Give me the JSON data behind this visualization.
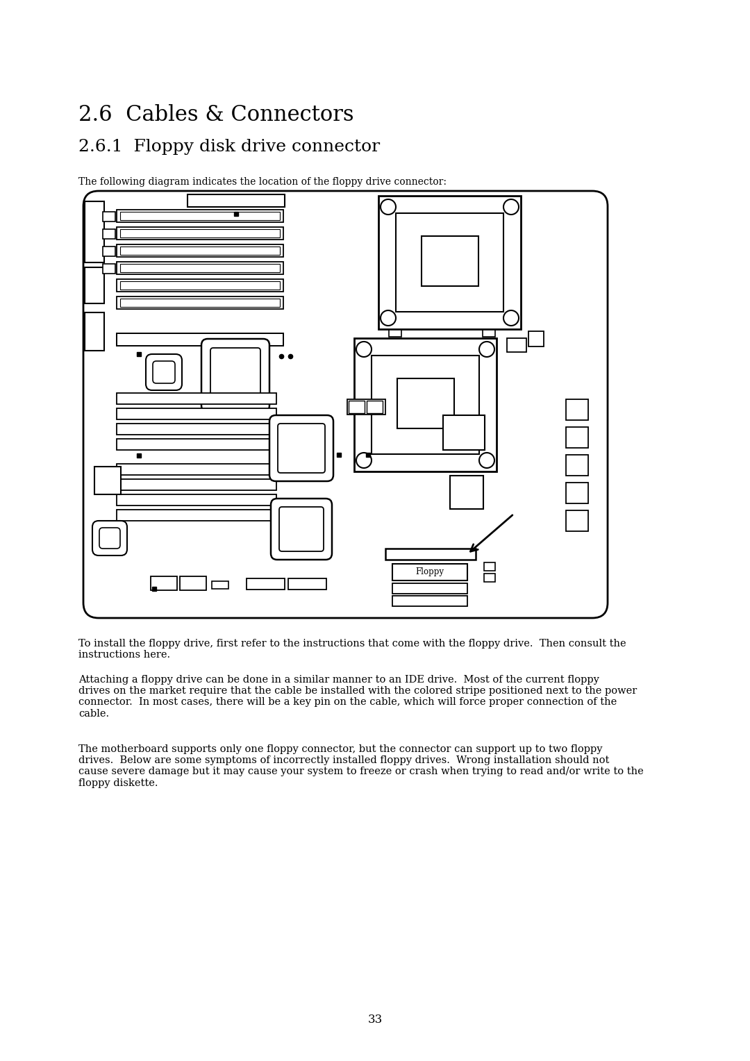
{
  "title1": "2.6  Cables & Connectors",
  "title2": "2.6.1  Floppy disk drive connector",
  "caption": "The following diagram indicates the location of the floppy drive connector:",
  "para1": "To install the floppy drive, first refer to the instructions that come with the floppy drive.  Then consult the\ninstructions here.",
  "para2": "Attaching a floppy drive can be done in a similar manner to an IDE drive.  Most of the current floppy\ndrives on the market require that the cable be installed with the colored stripe positioned next to the power\nconnector.  In most cases, there will be a key pin on the cable, which will force proper connection of the\ncable.",
  "para3": "The motherboard supports only one floppy connector, but the connector can support up to two floppy\ndrives.  Below are some symptoms of incorrectly installed floppy drives.  Wrong installation should not\ncause severe damage but it may cause your system to freeze or crash when trying to read and/or write to the\nfloppy diskette.",
  "page_number": "33",
  "bg_color": "#ffffff",
  "text_color": "#000000"
}
